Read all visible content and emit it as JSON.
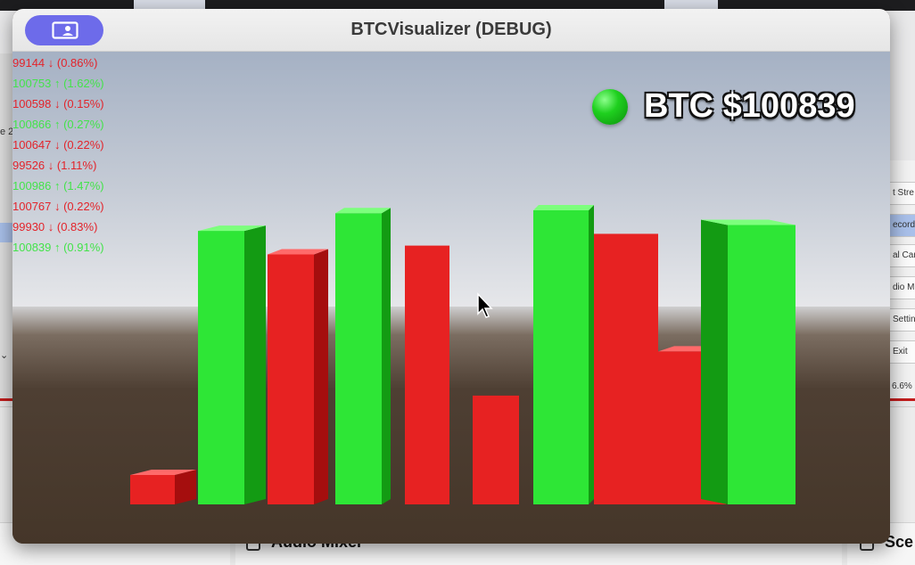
{
  "window": {
    "title": "BTCVisualizer (DEBUG)"
  },
  "colors": {
    "up": "#2ee636",
    "up_side": "#139b13",
    "up_top": "#7dff7d",
    "down": "#e72222",
    "down_side": "#a50e0e",
    "down_top": "#ff6a6a",
    "share_button": "#6d6bea"
  },
  "icons": {
    "share_button": "screen-share-icon",
    "cursor": "mouse-pointer-icon",
    "btc_orb": "green-sphere-icon"
  },
  "ticker": {
    "label": "BTC $100839"
  },
  "price_log": [
    {
      "text": "99144 ↓ (0.86%)",
      "dir": "down"
    },
    {
      "text": "100753 ↑ (1.62%)",
      "dir": "up"
    },
    {
      "text": "100598 ↓ (0.15%)",
      "dir": "down"
    },
    {
      "text": "100866 ↑ (0.27%)",
      "dir": "up"
    },
    {
      "text": "100647 ↓ (0.22%)",
      "dir": "down"
    },
    {
      "text": "99526 ↓ (1.11%)",
      "dir": "down"
    },
    {
      "text": "100986 ↑ (1.47%)",
      "dir": "up"
    },
    {
      "text": "100767 ↓ (0.22%)",
      "dir": "down"
    },
    {
      "text": "99930 ↓ (0.83%)",
      "dir": "down"
    },
    {
      "text": "100839 ↑ (0.91%)",
      "dir": "up"
    }
  ],
  "bars": [
    {
      "dir": "down",
      "level": 0.1
    },
    {
      "dir": "up",
      "level": 0.93
    },
    {
      "dir": "down",
      "level": 0.85
    },
    {
      "dir": "up",
      "level": 0.99
    },
    {
      "dir": "down",
      "level": 0.88
    },
    {
      "dir": "down",
      "level": 0.37
    },
    {
      "dir": "up",
      "level": 1.0
    },
    {
      "dir": "down",
      "level": 0.92
    },
    {
      "dir": "down",
      "level": 0.52
    },
    {
      "dir": "up",
      "level": 0.95
    }
  ],
  "background": {
    "bottom_left_panel": "Audio Mixer",
    "bottom_right_panel": "Sce",
    "left_edge_text": "e 2",
    "right_menu": [
      "t Stre",
      "ecordi",
      "al Car",
      "dio M",
      "Settin",
      "Exit"
    ],
    "right_stat": "6.6%"
  }
}
